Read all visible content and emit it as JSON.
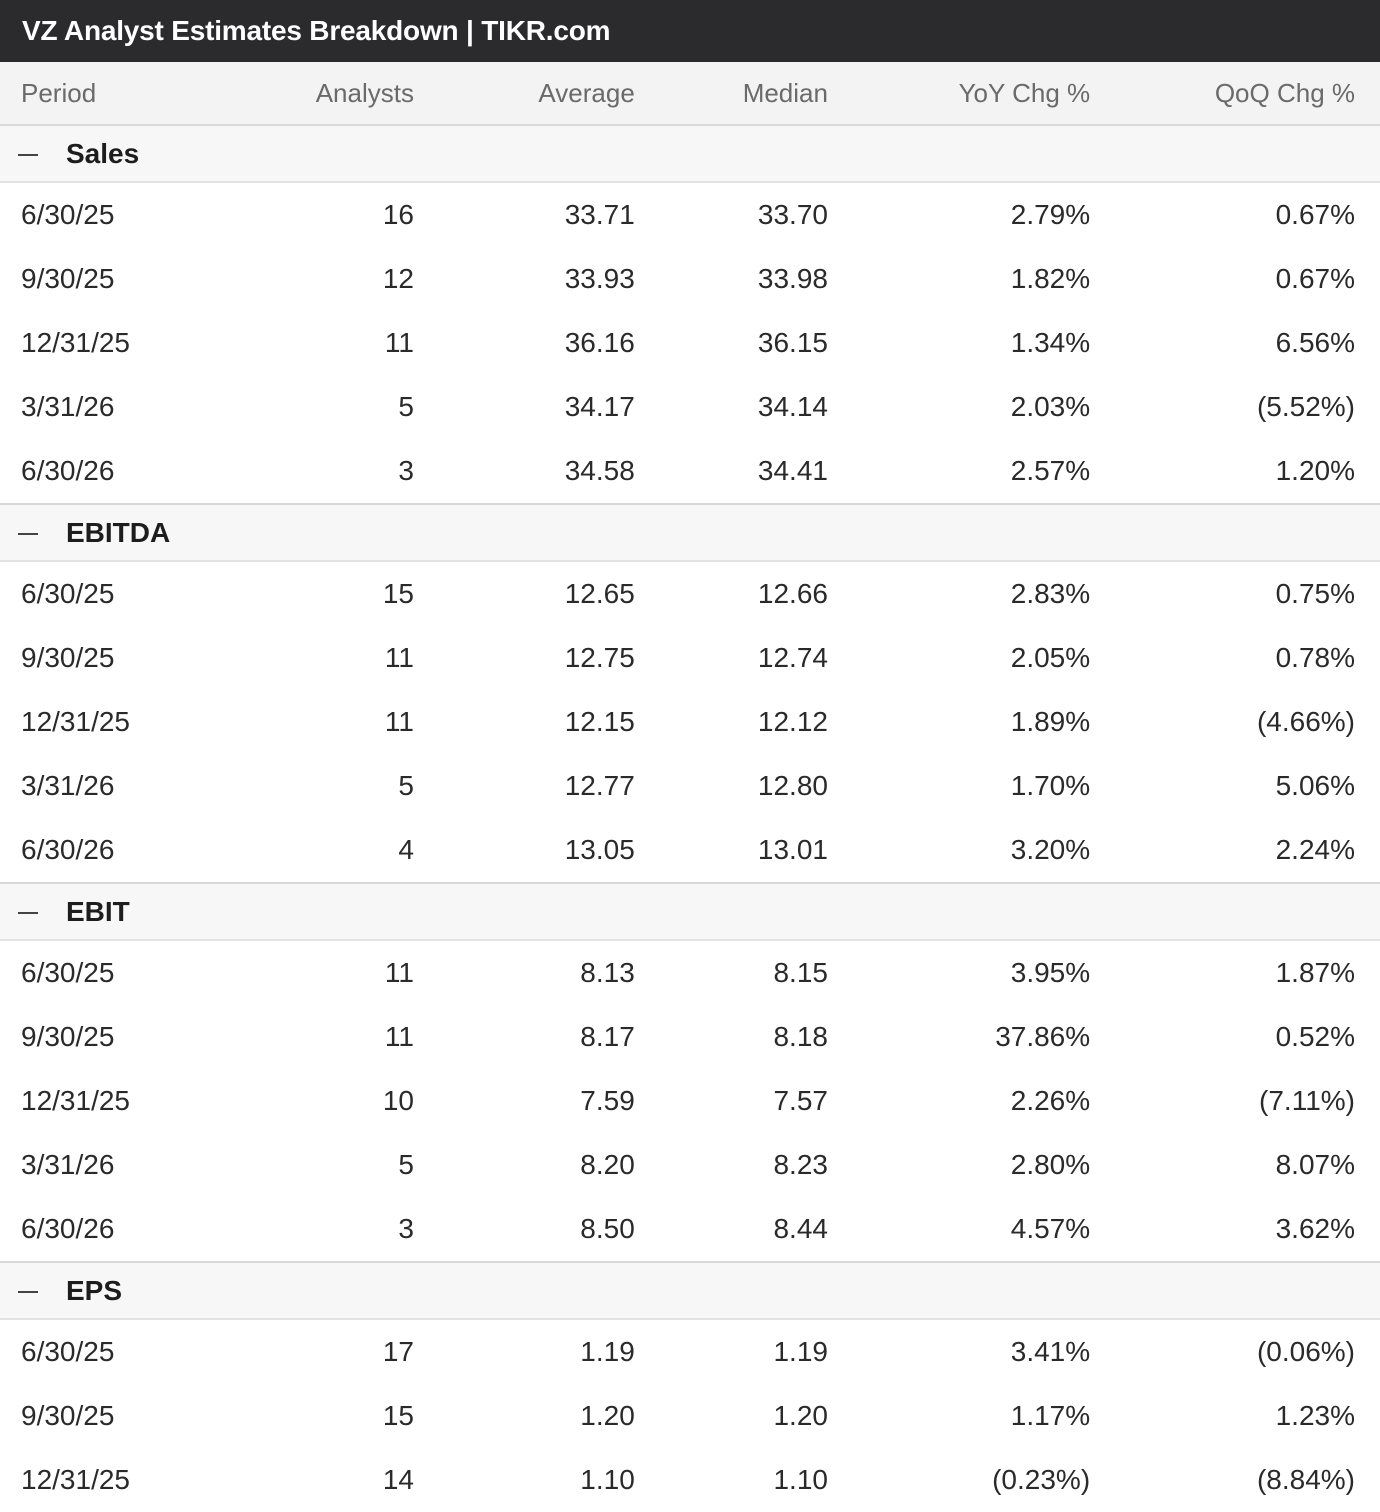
{
  "title": "VZ Analyst Estimates Breakdown | TIKR.com",
  "columns": [
    "Period",
    "Analysts",
    "Average",
    "Median",
    "YoY Chg %",
    "QoQ Chg %"
  ],
  "sections": [
    {
      "name": "Sales",
      "rows": [
        {
          "period": "6/30/25",
          "analysts": "16",
          "average": "33.71",
          "median": "33.70",
          "yoy": "2.79%",
          "qoq": "0.67%"
        },
        {
          "period": "9/30/25",
          "analysts": "12",
          "average": "33.93",
          "median": "33.98",
          "yoy": "1.82%",
          "qoq": "0.67%"
        },
        {
          "period": "12/31/25",
          "analysts": "11",
          "average": "36.16",
          "median": "36.15",
          "yoy": "1.34%",
          "qoq": "6.56%"
        },
        {
          "period": "3/31/26",
          "analysts": "5",
          "average": "34.17",
          "median": "34.14",
          "yoy": "2.03%",
          "qoq": "(5.52%)"
        },
        {
          "period": "6/30/26",
          "analysts": "3",
          "average": "34.58",
          "median": "34.41",
          "yoy": "2.57%",
          "qoq": "1.20%"
        }
      ]
    },
    {
      "name": "EBITDA",
      "rows": [
        {
          "period": "6/30/25",
          "analysts": "15",
          "average": "12.65",
          "median": "12.66",
          "yoy": "2.83%",
          "qoq": "0.75%"
        },
        {
          "period": "9/30/25",
          "analysts": "11",
          "average": "12.75",
          "median": "12.74",
          "yoy": "2.05%",
          "qoq": "0.78%"
        },
        {
          "period": "12/31/25",
          "analysts": "11",
          "average": "12.15",
          "median": "12.12",
          "yoy": "1.89%",
          "qoq": "(4.66%)"
        },
        {
          "period": "3/31/26",
          "analysts": "5",
          "average": "12.77",
          "median": "12.80",
          "yoy": "1.70%",
          "qoq": "5.06%"
        },
        {
          "period": "6/30/26",
          "analysts": "4",
          "average": "13.05",
          "median": "13.01",
          "yoy": "3.20%",
          "qoq": "2.24%"
        }
      ]
    },
    {
      "name": "EBIT",
      "rows": [
        {
          "period": "6/30/25",
          "analysts": "11",
          "average": "8.13",
          "median": "8.15",
          "yoy": "3.95%",
          "qoq": "1.87%"
        },
        {
          "period": "9/30/25",
          "analysts": "11",
          "average": "8.17",
          "median": "8.18",
          "yoy": "37.86%",
          "qoq": "0.52%"
        },
        {
          "period": "12/31/25",
          "analysts": "10",
          "average": "7.59",
          "median": "7.57",
          "yoy": "2.26%",
          "qoq": "(7.11%)"
        },
        {
          "period": "3/31/26",
          "analysts": "5",
          "average": "8.20",
          "median": "8.23",
          "yoy": "2.80%",
          "qoq": "8.07%"
        },
        {
          "period": "6/30/26",
          "analysts": "3",
          "average": "8.50",
          "median": "8.44",
          "yoy": "4.57%",
          "qoq": "3.62%"
        }
      ]
    },
    {
      "name": "EPS",
      "rows": [
        {
          "period": "6/30/25",
          "analysts": "17",
          "average": "1.19",
          "median": "1.19",
          "yoy": "3.41%",
          "qoq": "(0.06%)"
        },
        {
          "period": "9/30/25",
          "analysts": "15",
          "average": "1.20",
          "median": "1.20",
          "yoy": "1.17%",
          "qoq": "1.23%"
        },
        {
          "period": "12/31/25",
          "analysts": "14",
          "average": "1.10",
          "median": "1.10",
          "yoy": "(0.23%)",
          "qoq": "(8.84%)"
        }
      ]
    }
  ],
  "colors": {
    "positive": "#3e9a3a",
    "negative": "#d3363a",
    "titlebar": "#2b2b2d"
  }
}
